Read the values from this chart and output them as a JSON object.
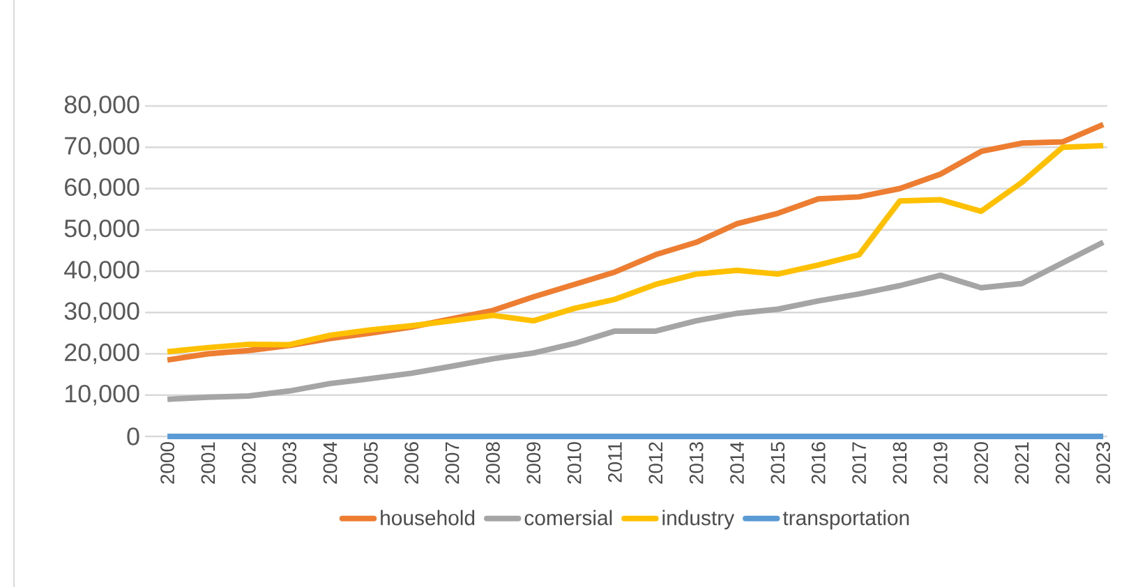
{
  "chart_data": {
    "type": "line",
    "categories": [
      "2000",
      "2001",
      "2002",
      "2003",
      "2004",
      "2005",
      "2006",
      "2007",
      "2008",
      "2009",
      "2010",
      "2011",
      "2012",
      "2013",
      "2014",
      "2015",
      "2016",
      "2017",
      "2018",
      "2019",
      "2020",
      "2021",
      "2022",
      "2023"
    ],
    "series": [
      {
        "name": "household",
        "color": "#ed7d31",
        "values": [
          18500,
          20000,
          20800,
          22000,
          23700,
          25000,
          26500,
          28500,
          30500,
          33800,
          36800,
          39800,
          44000,
          47000,
          51500,
          54000,
          57500,
          58000,
          60000,
          63500,
          69000,
          71000,
          71300,
          75500
        ]
      },
      {
        "name": "comersial",
        "color": "#a5a5a5",
        "values": [
          9000,
          9500,
          9800,
          11000,
          12800,
          14000,
          15300,
          17000,
          18800,
          20200,
          22500,
          25500,
          25500,
          28000,
          29800,
          30800,
          32800,
          34500,
          36500,
          39000,
          36000,
          37000,
          42000,
          47000
        ]
      },
      {
        "name": "industry",
        "color": "#ffc000",
        "values": [
          20500,
          21500,
          22300,
          22200,
          24500,
          25800,
          26800,
          28000,
          29300,
          28000,
          31000,
          33200,
          36800,
          39300,
          40200,
          39300,
          41500,
          44000,
          57000,
          57300,
          54500,
          61500,
          70000,
          70400
        ]
      },
      {
        "name": "transportation",
        "color": "#5b9bd5",
        "values": [
          0,
          0,
          0,
          0,
          0,
          0,
          0,
          0,
          0,
          0,
          0,
          0,
          0,
          0,
          0,
          0,
          0,
          0,
          0,
          0,
          0,
          0,
          0,
          0
        ]
      }
    ],
    "ylim": [
      0,
      80000
    ],
    "yticks": [
      {
        "value": 0,
        "label": "0"
      },
      {
        "value": 10000,
        "label": "10,000"
      },
      {
        "value": 20000,
        "label": "20,000"
      },
      {
        "value": 30000,
        "label": "30,000"
      },
      {
        "value": 40000,
        "label": "40,000"
      },
      {
        "value": 50000,
        "label": "50,000"
      },
      {
        "value": 60000,
        "label": "60,000"
      },
      {
        "value": 70000,
        "label": "70,000"
      },
      {
        "value": 80000,
        "label": "80,000"
      }
    ],
    "grid": "y",
    "legend": "bottom",
    "marker": "none",
    "line_style": "solid"
  }
}
